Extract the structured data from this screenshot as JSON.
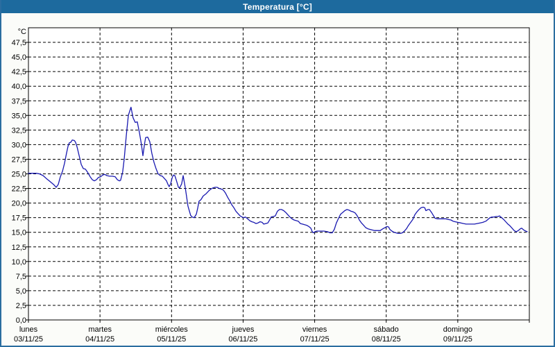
{
  "window": {
    "title": "Temperatura [°C]"
  },
  "colors": {
    "titlebar_bg": "#1d6a9e",
    "titlebar_text": "#ffffff",
    "window_border": "#2a6da0",
    "line": "#1818b0",
    "grid": "#000000",
    "plot_bg": "#ffffff",
    "page_bg": "#fbfcf9"
  },
  "chart_data": {
    "type": "line",
    "title": "Temperatura [°C]",
    "ylabel": "°C",
    "xlabel": "",
    "grid": "dashed",
    "legend": "none",
    "ylim": [
      0,
      50
    ],
    "xlim": [
      0,
      168
    ],
    "x_unit": "hours_from_monday_00",
    "y_ticks": [
      {
        "v": 47.5,
        "label": "47,5"
      },
      {
        "v": 45.0,
        "label": "45,0"
      },
      {
        "v": 42.5,
        "label": "42,5"
      },
      {
        "v": 40.0,
        "label": "40,0"
      },
      {
        "v": 37.5,
        "label": "37,5"
      },
      {
        "v": 35.0,
        "label": "35,0"
      },
      {
        "v": 32.5,
        "label": "32,5"
      },
      {
        "v": 30.0,
        "label": "30,0"
      },
      {
        "v": 27.5,
        "label": "27,5"
      },
      {
        "v": 25.0,
        "label": "25,0"
      },
      {
        "v": 22.5,
        "label": "22,5"
      },
      {
        "v": 20.0,
        "label": "20,0"
      },
      {
        "v": 17.5,
        "label": "17,5"
      },
      {
        "v": 15.0,
        "label": "15,0"
      },
      {
        "v": 12.5,
        "label": "12,5"
      },
      {
        "v": 10.0,
        "label": "10,0"
      },
      {
        "v": 7.5,
        "label": "7,5"
      },
      {
        "v": 5.0,
        "label": "5,0"
      },
      {
        "v": 2.5,
        "label": "2,5"
      },
      {
        "v": 0.0,
        "label": "0,0"
      }
    ],
    "x_days": [
      {
        "name": "lunes",
        "date": "03/11/25"
      },
      {
        "name": "martes",
        "date": "04/11/25"
      },
      {
        "name": "miércoles",
        "date": "05/11/25"
      },
      {
        "name": "jueves",
        "date": "06/11/25"
      },
      {
        "name": "viernes",
        "date": "07/11/25"
      },
      {
        "name": "sábado",
        "date": "08/11/25"
      },
      {
        "name": "domingo",
        "date": "09/11/25"
      }
    ],
    "series": [
      {
        "name": "Temperatura",
        "color": "#1818b0",
        "points": [
          [
            0,
            25.1
          ],
          [
            1.4,
            25.1
          ],
          [
            2.6,
            25.1
          ],
          [
            3.7,
            25.0
          ],
          [
            4.9,
            24.7
          ],
          [
            6,
            24.2
          ],
          [
            7.2,
            23.7
          ],
          [
            8.4,
            23.2
          ],
          [
            9.3,
            22.7
          ],
          [
            10,
            23.2
          ],
          [
            10.7,
            24.5
          ],
          [
            11.4,
            25.4
          ],
          [
            12.1,
            26.8
          ],
          [
            12.8,
            28.6
          ],
          [
            13.3,
            29.8
          ],
          [
            13.7,
            30.3
          ],
          [
            14.2,
            30.4
          ],
          [
            14.7,
            30.8
          ],
          [
            15.4,
            30.7
          ],
          [
            15.8,
            30.4
          ],
          [
            16.3,
            29.6
          ],
          [
            17,
            28.1
          ],
          [
            17.7,
            26.6
          ],
          [
            18.4,
            25.9
          ],
          [
            19.1,
            25.8
          ],
          [
            19.8,
            25.3
          ],
          [
            20.7,
            24.5
          ],
          [
            21.4,
            24.0
          ],
          [
            22.1,
            23.8
          ],
          [
            22.8,
            24.0
          ],
          [
            23.5,
            24.4
          ],
          [
            24.2,
            24.5
          ],
          [
            24.9,
            24.8
          ],
          [
            25.6,
            24.9
          ],
          [
            26.3,
            24.7
          ],
          [
            27.2,
            24.6
          ],
          [
            28.2,
            24.6
          ],
          [
            29.1,
            24.5
          ],
          [
            29.8,
            24.0
          ],
          [
            30.5,
            23.8
          ],
          [
            30.9,
            23.9
          ],
          [
            31.6,
            25.3
          ],
          [
            32.1,
            27.5
          ],
          [
            32.8,
            31.5
          ],
          [
            33.5,
            35.0
          ],
          [
            34.4,
            36.4
          ],
          [
            35.1,
            34.6
          ],
          [
            35.8,
            33.8
          ],
          [
            36.5,
            33.9
          ],
          [
            37.2,
            32.1
          ],
          [
            37.9,
            30.0
          ],
          [
            38.4,
            28.1
          ],
          [
            38.9,
            30.0
          ],
          [
            39.3,
            31.2
          ],
          [
            40,
            31.3
          ],
          [
            40.7,
            30.5
          ],
          [
            41.4,
            28.5
          ],
          [
            42.1,
            27.0
          ],
          [
            42.8,
            25.9
          ],
          [
            43.5,
            25.0
          ],
          [
            44.2,
            24.7
          ],
          [
            44.9,
            24.6
          ],
          [
            45.6,
            24.2
          ],
          [
            46.3,
            23.8
          ],
          [
            46.8,
            23.2
          ],
          [
            47.2,
            22.8
          ],
          [
            47.7,
            23.3
          ],
          [
            48.2,
            24.3
          ],
          [
            48.6,
            24.8
          ],
          [
            49.1,
            24.7
          ],
          [
            49.6,
            23.9
          ],
          [
            50.3,
            22.7
          ],
          [
            50.7,
            22.6
          ],
          [
            51.4,
            23.3
          ],
          [
            51.9,
            24.7
          ],
          [
            52.6,
            22.6
          ],
          [
            53.1,
            20.9
          ],
          [
            53.5,
            19.5
          ],
          [
            54,
            18.6
          ],
          [
            54.4,
            17.9
          ],
          [
            54.9,
            17.6
          ],
          [
            55.6,
            17.5
          ],
          [
            56.3,
            18.1
          ],
          [
            56.8,
            19.2
          ],
          [
            57.2,
            20.3
          ],
          [
            57.9,
            20.6
          ],
          [
            58.6,
            21.2
          ],
          [
            59.6,
            21.6
          ],
          [
            60.5,
            22.1
          ],
          [
            61.2,
            22.4
          ],
          [
            61.9,
            22.6
          ],
          [
            62.6,
            22.7
          ],
          [
            63.3,
            22.7
          ],
          [
            64,
            22.5
          ],
          [
            64.7,
            22.4
          ],
          [
            65.4,
            22.2
          ],
          [
            66.1,
            21.7
          ],
          [
            66.8,
            21.0
          ],
          [
            67.5,
            20.4
          ],
          [
            68.2,
            19.7
          ],
          [
            68.9,
            19.2
          ],
          [
            69.6,
            18.6
          ],
          [
            70.3,
            18.2
          ],
          [
            71,
            17.8
          ],
          [
            71.7,
            17.6
          ],
          [
            72.1,
            17.5
          ],
          [
            72.8,
            17.6
          ],
          [
            73.5,
            17.3
          ],
          [
            74.2,
            17.0
          ],
          [
            74.9,
            16.8
          ],
          [
            75.6,
            16.7
          ],
          [
            76.3,
            16.5
          ],
          [
            77,
            16.6
          ],
          [
            77.7,
            16.8
          ],
          [
            78.4,
            16.7
          ],
          [
            78.9,
            16.4
          ],
          [
            79.6,
            16.5
          ],
          [
            80.3,
            16.6
          ],
          [
            81,
            17.2
          ],
          [
            81.4,
            17.6
          ],
          [
            82.1,
            17.7
          ],
          [
            82.8,
            17.8
          ],
          [
            83.5,
            18.6
          ],
          [
            84.2,
            18.9
          ],
          [
            84.9,
            18.9
          ],
          [
            85.6,
            18.7
          ],
          [
            86.3,
            18.4
          ],
          [
            87,
            18.0
          ],
          [
            87.7,
            17.6
          ],
          [
            88.4,
            17.3
          ],
          [
            89.1,
            17.1
          ],
          [
            89.8,
            17.0
          ],
          [
            90.5,
            16.9
          ],
          [
            91.2,
            16.5
          ],
          [
            91.9,
            16.4
          ],
          [
            92.6,
            16.3
          ],
          [
            93.3,
            16.2
          ],
          [
            94,
            16.0
          ],
          [
            94.7,
            15.7
          ],
          [
            95.2,
            15.1
          ],
          [
            95.6,
            14.9
          ],
          [
            96.1,
            15.1
          ],
          [
            96.8,
            15.2
          ],
          [
            98,
            15.2
          ],
          [
            99.1,
            15.2
          ],
          [
            100.3,
            15.1
          ],
          [
            101.2,
            14.9
          ],
          [
            101.9,
            14.9
          ],
          [
            102.6,
            15.5
          ],
          [
            103.3,
            16.6
          ],
          [
            104,
            17.4
          ],
          [
            104.7,
            18.1
          ],
          [
            105.4,
            18.4
          ],
          [
            106.1,
            18.7
          ],
          [
            106.8,
            18.9
          ],
          [
            107.5,
            18.8
          ],
          [
            108.2,
            18.6
          ],
          [
            108.9,
            18.5
          ],
          [
            109.6,
            18.3
          ],
          [
            110.3,
            17.8
          ],
          [
            111,
            17.1
          ],
          [
            111.7,
            16.6
          ],
          [
            112.4,
            16.2
          ],
          [
            113.1,
            15.8
          ],
          [
            113.8,
            15.6
          ],
          [
            114.5,
            15.5
          ],
          [
            115.2,
            15.4
          ],
          [
            116.1,
            15.3
          ],
          [
            117,
            15.3
          ],
          [
            118,
            15.3
          ],
          [
            118.9,
            15.6
          ],
          [
            119.6,
            15.8
          ],
          [
            120.3,
            16.0
          ],
          [
            120.8,
            15.9
          ],
          [
            121.2,
            15.5
          ],
          [
            121.9,
            15.2
          ],
          [
            122.6,
            15.0
          ],
          [
            123.3,
            14.9
          ],
          [
            124,
            14.8
          ],
          [
            124.7,
            14.8
          ],
          [
            125.4,
            14.9
          ],
          [
            126.1,
            15.2
          ],
          [
            126.8,
            15.6
          ],
          [
            127.5,
            16.2
          ],
          [
            128.2,
            16.7
          ],
          [
            128.9,
            17.2
          ],
          [
            129.6,
            18.0
          ],
          [
            130.3,
            18.5
          ],
          [
            131,
            18.9
          ],
          [
            131.7,
            19.2
          ],
          [
            132.4,
            19.3
          ],
          [
            132.9,
            19.2
          ],
          [
            133.3,
            18.7
          ],
          [
            134,
            18.9
          ],
          [
            134.5,
            18.9
          ],
          [
            135.2,
            18.4
          ],
          [
            135.9,
            17.8
          ],
          [
            136.4,
            17.4
          ],
          [
            137.1,
            17.3
          ],
          [
            138,
            17.3
          ],
          [
            138.9,
            17.3
          ],
          [
            139.9,
            17.3
          ],
          [
            140.8,
            17.2
          ],
          [
            141.7,
            17.1
          ],
          [
            142.4,
            16.9
          ],
          [
            143.1,
            16.8
          ],
          [
            144,
            16.7
          ],
          [
            145,
            16.6
          ],
          [
            145.9,
            16.5
          ],
          [
            146.8,
            16.4
          ],
          [
            147.8,
            16.4
          ],
          [
            148.7,
            16.4
          ],
          [
            149.6,
            16.4
          ],
          [
            150.5,
            16.5
          ],
          [
            151.5,
            16.6
          ],
          [
            152.4,
            16.7
          ],
          [
            153.4,
            16.9
          ],
          [
            154.1,
            17.2
          ],
          [
            154.8,
            17.5
          ],
          [
            155.4,
            17.6
          ],
          [
            156.1,
            17.6
          ],
          [
            156.8,
            17.7
          ],
          [
            157.5,
            17.7
          ],
          [
            158,
            17.8
          ],
          [
            158.7,
            17.5
          ],
          [
            159.4,
            17.2
          ],
          [
            160.1,
            16.8
          ],
          [
            160.8,
            16.4
          ],
          [
            161.5,
            16.1
          ],
          [
            162.2,
            15.7
          ],
          [
            162.9,
            15.3
          ],
          [
            163.6,
            15.1
          ],
          [
            164.3,
            15.3
          ],
          [
            165,
            15.6
          ],
          [
            165.4,
            15.7
          ],
          [
            166.1,
            15.4
          ],
          [
            166.8,
            15.2
          ],
          [
            167.3,
            15.1
          ]
        ]
      }
    ]
  }
}
